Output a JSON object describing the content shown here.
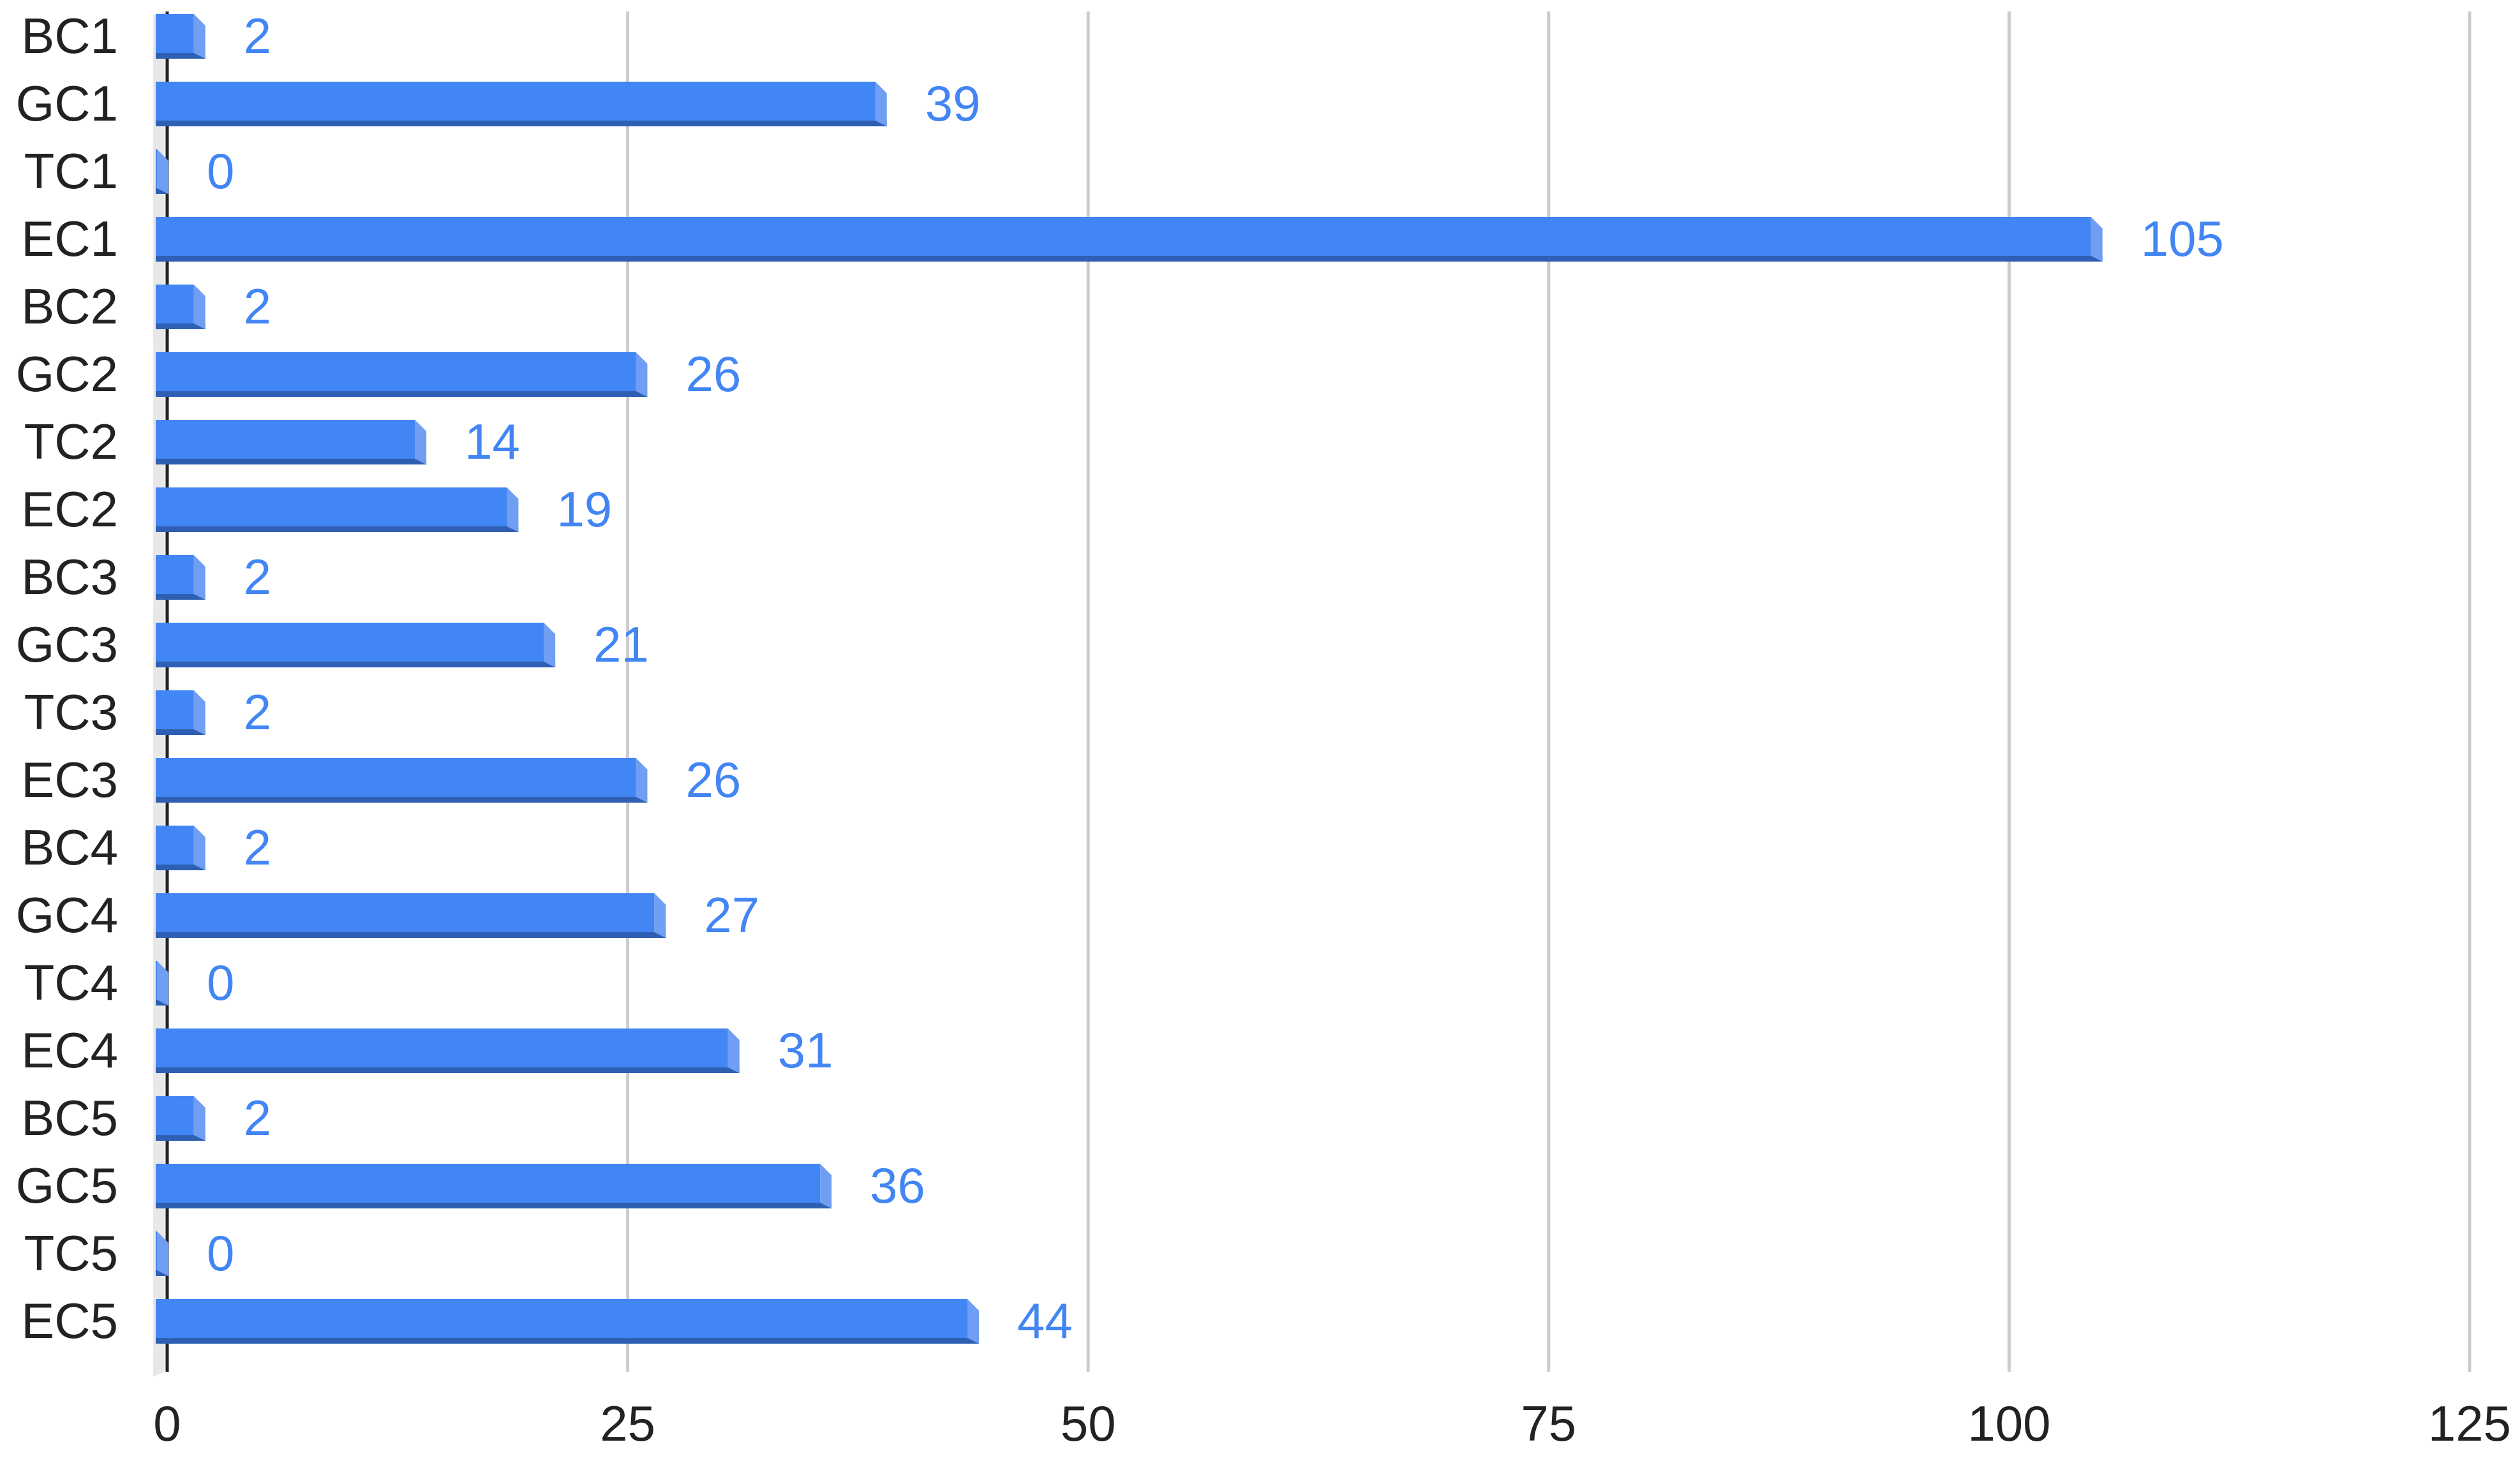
{
  "chart_data": {
    "type": "bar",
    "orientation": "horizontal",
    "style": "3d",
    "title": "",
    "xlabel": "",
    "ylabel": "",
    "categories": [
      "BC1",
      "GC1",
      "TC1",
      "EC1",
      "BC2",
      "GC2",
      "TC2",
      "EC2",
      "BC3",
      "GC3",
      "TC3",
      "EC3",
      "BC4",
      "GC4",
      "TC4",
      "EC4",
      "BC5",
      "GC5",
      "TC5",
      "EC5"
    ],
    "values": [
      2,
      39,
      0,
      105,
      2,
      26,
      14,
      19,
      2,
      21,
      2,
      26,
      2,
      27,
      0,
      31,
      2,
      36,
      0,
      44
    ],
    "xlim": [
      0,
      125
    ],
    "x_ticks": [
      0,
      25,
      50,
      75,
      100,
      125
    ],
    "x_tick_labels": [
      "0",
      "25",
      "50",
      "75",
      "100",
      "125"
    ],
    "data_labels": [
      "2",
      "39",
      "0",
      "105",
      "2",
      "26",
      "14",
      "19",
      "2",
      "21",
      "2",
      "26",
      "2",
      "27",
      "0",
      "31",
      "2",
      "36",
      "0",
      "44"
    ],
    "grid": true,
    "legend": "none",
    "colors": {
      "bar_face": "#4285f4",
      "bar_bottom": "#2f5fb3",
      "bar_end": "#6f9ef2",
      "data_label": "#4285f4",
      "grid": "#cccccc",
      "axis_wall": "#e8e8e8",
      "text": "#222222"
    }
  }
}
